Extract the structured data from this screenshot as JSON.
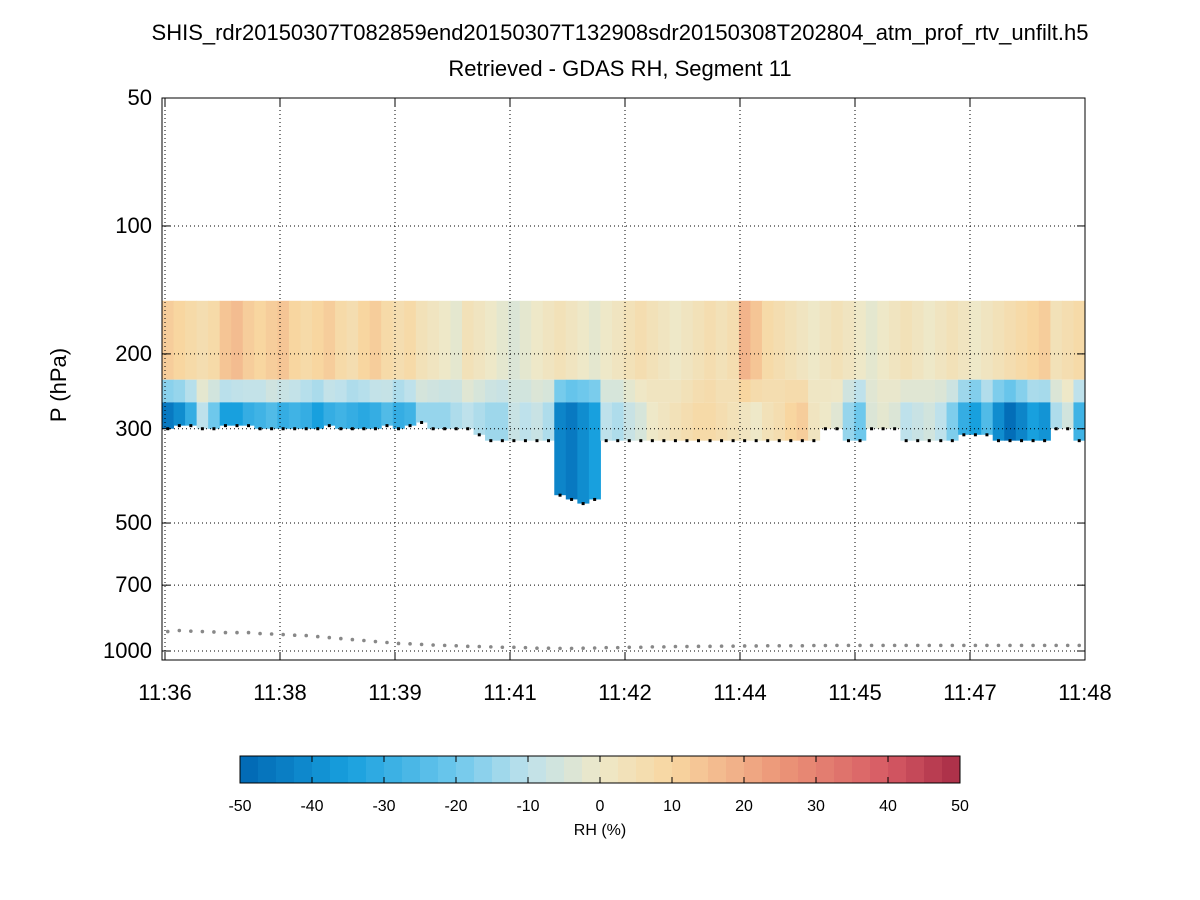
{
  "chart_data": {
    "type": "heatmap",
    "title": "SHIS_rdr20150307T082859end20150307T132908sdr20150308T202804_atm_prof_rtv_unfilt.h5",
    "subtitle": "Retrieved - GDAS RH, Segment 11",
    "xlabel": "",
    "ylabel": "P (hPa)",
    "x_tick_labels": [
      "11:36",
      "11:38",
      "11:39",
      "11:41",
      "11:42",
      "11:44",
      "11:45",
      "11:47",
      "11:48"
    ],
    "y_tick_values": [
      50,
      100,
      200,
      300,
      500,
      700,
      1000
    ],
    "y_scale": "log, reversed",
    "ylim": [
      50,
      1050
    ],
    "grid": true,
    "colorbar": {
      "label": "RH (%)",
      "ticks": [
        -50,
        -40,
        -30,
        -20,
        -10,
        0,
        10,
        20,
        30,
        40,
        50
      ],
      "range": [
        -50,
        50
      ],
      "colormap": "diverging blue-white-red"
    },
    "field_top_pressure_hPa": 150,
    "n_columns": 80,
    "column_profiles_note": "per-column bottom pressure (hPa) and RH difference in lower layer (%)",
    "column_bottom_pressure_hPa": [
      300,
      295,
      295,
      300,
      300,
      295,
      295,
      295,
      300,
      300,
      300,
      300,
      300,
      300,
      295,
      300,
      300,
      300,
      300,
      295,
      300,
      295,
      290,
      300,
      300,
      300,
      300,
      310,
      320,
      320,
      320,
      320,
      320,
      320,
      430,
      440,
      450,
      440,
      320,
      320,
      320,
      320,
      320,
      320,
      320,
      320,
      320,
      320,
      320,
      320,
      320,
      320,
      320,
      320,
      320,
      320,
      320,
      300,
      300,
      320,
      320,
      300,
      300,
      300,
      320,
      320,
      320,
      320,
      320,
      310,
      310,
      310,
      320,
      320,
      320,
      320,
      320,
      300,
      300,
      320
    ],
    "column_lower_rh_diff": [
      -45,
      -40,
      -30,
      -10,
      -20,
      -35,
      -35,
      -30,
      -28,
      -25,
      -30,
      -28,
      -30,
      -35,
      -30,
      -28,
      -30,
      -32,
      -30,
      -25,
      -30,
      -28,
      -15,
      -15,
      -15,
      -12,
      -10,
      -12,
      -14,
      -14,
      -8,
      -10,
      -8,
      -12,
      -42,
      -45,
      -40,
      -35,
      -10,
      -12,
      -8,
      -5,
      0,
      2,
      4,
      6,
      8,
      8,
      6,
      4,
      2,
      0,
      4,
      6,
      10,
      12,
      2,
      0,
      -3,
      -15,
      -20,
      -4,
      -2,
      -4,
      -10,
      -8,
      -6,
      -10,
      -18,
      -30,
      -35,
      -25,
      -40,
      -48,
      -42,
      -35,
      -38,
      -12,
      -6,
      -28
    ],
    "column_upper_rh_diff": [
      12,
      10,
      8,
      6,
      8,
      14,
      16,
      12,
      10,
      12,
      14,
      10,
      8,
      10,
      12,
      8,
      6,
      10,
      12,
      8,
      6,
      8,
      4,
      2,
      0,
      -2,
      4,
      2,
      0,
      -2,
      -4,
      -2,
      0,
      2,
      4,
      2,
      0,
      -2,
      0,
      2,
      4,
      6,
      4,
      2,
      0,
      2,
      4,
      6,
      4,
      6,
      18,
      14,
      8,
      6,
      4,
      2,
      0,
      2,
      4,
      2,
      0,
      -2,
      0,
      2,
      4,
      2,
      0,
      2,
      4,
      2,
      0,
      2,
      4,
      6,
      8,
      10,
      12,
      4,
      6,
      8
    ],
    "surface_pressure_hPa": [
      900,
      895,
      898,
      900,
      902,
      905,
      905,
      905,
      910,
      912,
      915,
      918,
      920,
      925,
      930,
      935,
      940,
      945,
      950,
      955,
      960,
      962,
      965,
      968,
      970,
      972,
      975,
      976,
      978,
      980,
      980,
      982,
      985,
      985,
      986,
      986,
      985,
      984,
      982,
      982,
      980,
      980,
      978,
      978,
      976,
      976,
      975,
      975,
      974,
      974,
      973,
      973,
      972,
      972,
      972,
      972,
      971,
      971,
      970,
      970,
      970,
      970,
      970,
      970,
      970,
      970,
      970,
      970,
      970,
      970,
      970,
      970,
      970,
      970,
      970,
      970,
      970,
      970,
      970,
      970
    ]
  }
}
